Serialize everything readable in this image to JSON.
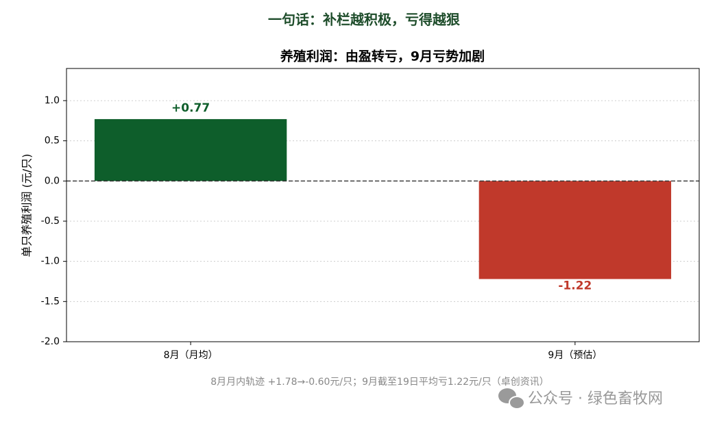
{
  "chart_data": {
    "type": "bar",
    "header": "一句话：补栏越积极，亏得越狠",
    "title": "养殖利润：由盈转亏，9月亏势加剧",
    "ylabel": "单只养殖利润 (元/只)",
    "categories": [
      "8月（月均）",
      "9月（预估）"
    ],
    "values": [
      0.77,
      -1.22
    ],
    "value_labels": [
      "+0.77",
      "-1.22"
    ],
    "colors": [
      "#0e5e2b",
      "#c0392b"
    ],
    "ylim": [
      -2,
      1.4
    ],
    "yticks": [
      {
        "value": -2,
        "label": "-2.0"
      },
      -1.5,
      {
        "value": -1,
        "label": "-1.0"
      },
      -0.5,
      {
        "value": 0,
        "label": "0.0"
      },
      0.5,
      {
        "value": 1,
        "label": "1.0"
      }
    ],
    "grid": true,
    "footnote": "8月月内轨迹 +1.78→-0.60元/只；9月截至19日平均亏1.22元/只（卓创资讯）",
    "watermark": "公众号 · 绿色畜牧网"
  }
}
